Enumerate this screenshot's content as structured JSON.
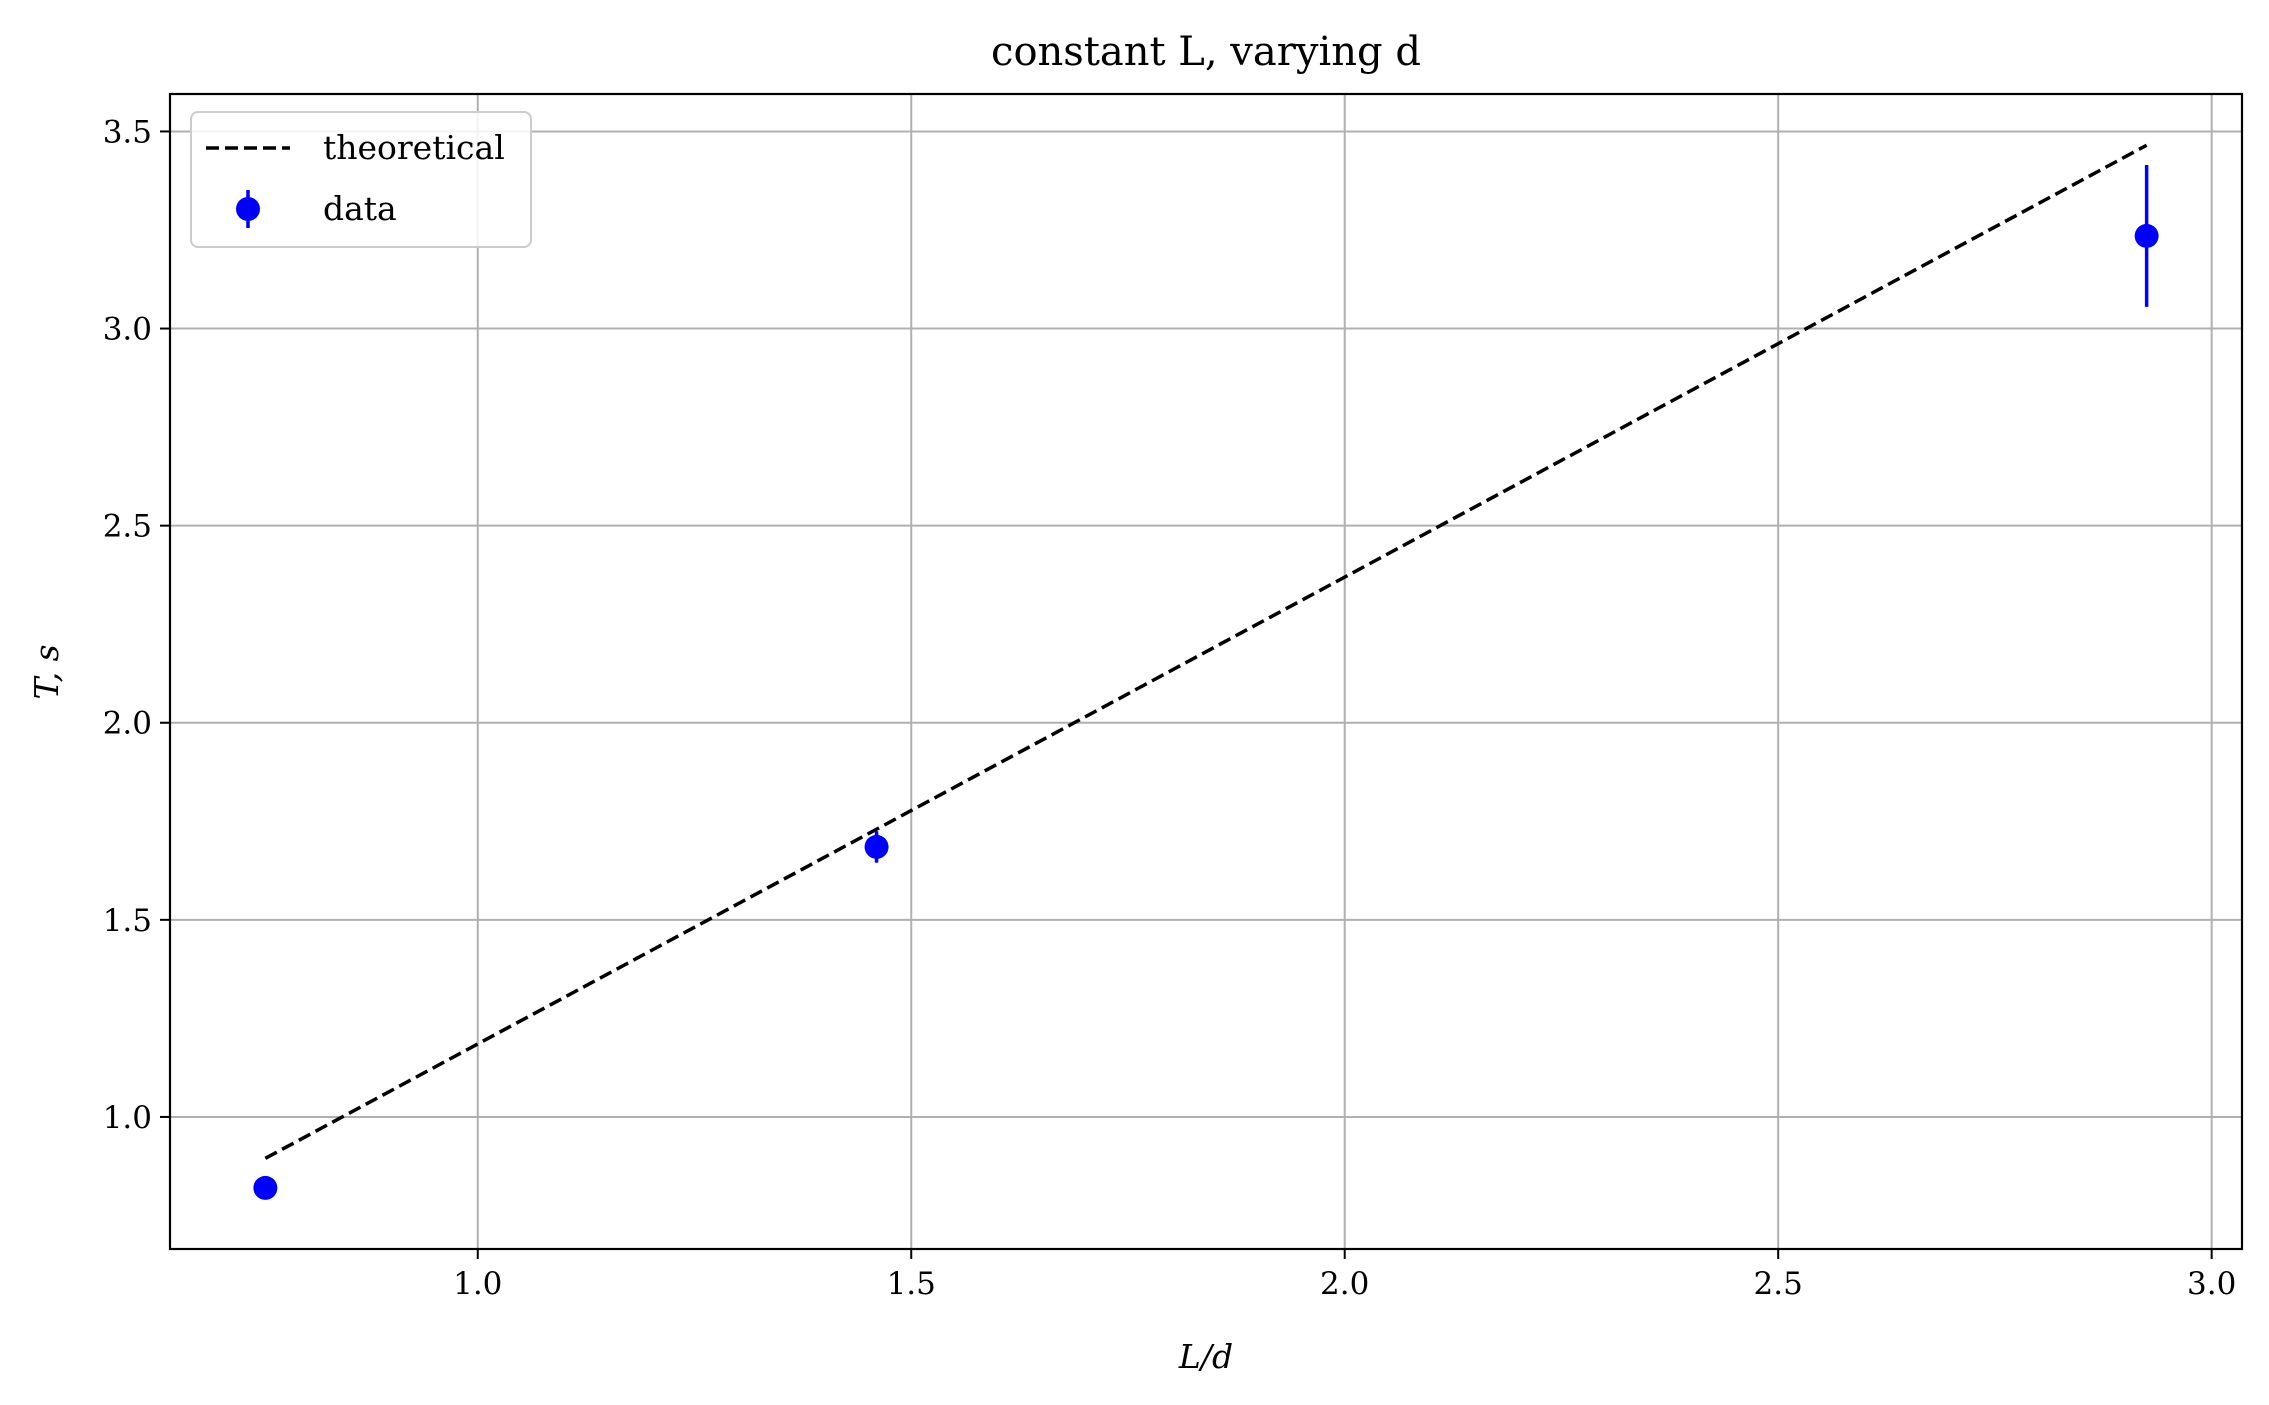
{
  "chart_data": {
    "type": "scatter",
    "title": "constant L, varying d",
    "xlabel": "L/d",
    "ylabel": "T, s",
    "xlim": [
      0.645,
      3.035
    ],
    "ylim": [
      0.665,
      3.595
    ],
    "xticks": [
      "1.0",
      "1.5",
      "2.0",
      "2.5",
      "3.0"
    ],
    "yticks": [
      "1.0",
      "1.5",
      "2.0",
      "2.5",
      "3.0",
      "3.5"
    ],
    "grid": true,
    "legend_position": "top-left",
    "series": [
      {
        "name": "theoretical",
        "style": "dashed-line",
        "color": "#000000",
        "x": [
          0.755,
          2.925
        ],
        "y": [
          0.895,
          3.465
        ]
      },
      {
        "name": "data",
        "style": "points-with-errorbars",
        "color": "#0000ff",
        "x": [
          0.755,
          1.46,
          2.925
        ],
        "y": [
          0.82,
          1.685,
          3.235
        ],
        "yerr": [
          0.0,
          0.04,
          0.18
        ]
      }
    ]
  }
}
